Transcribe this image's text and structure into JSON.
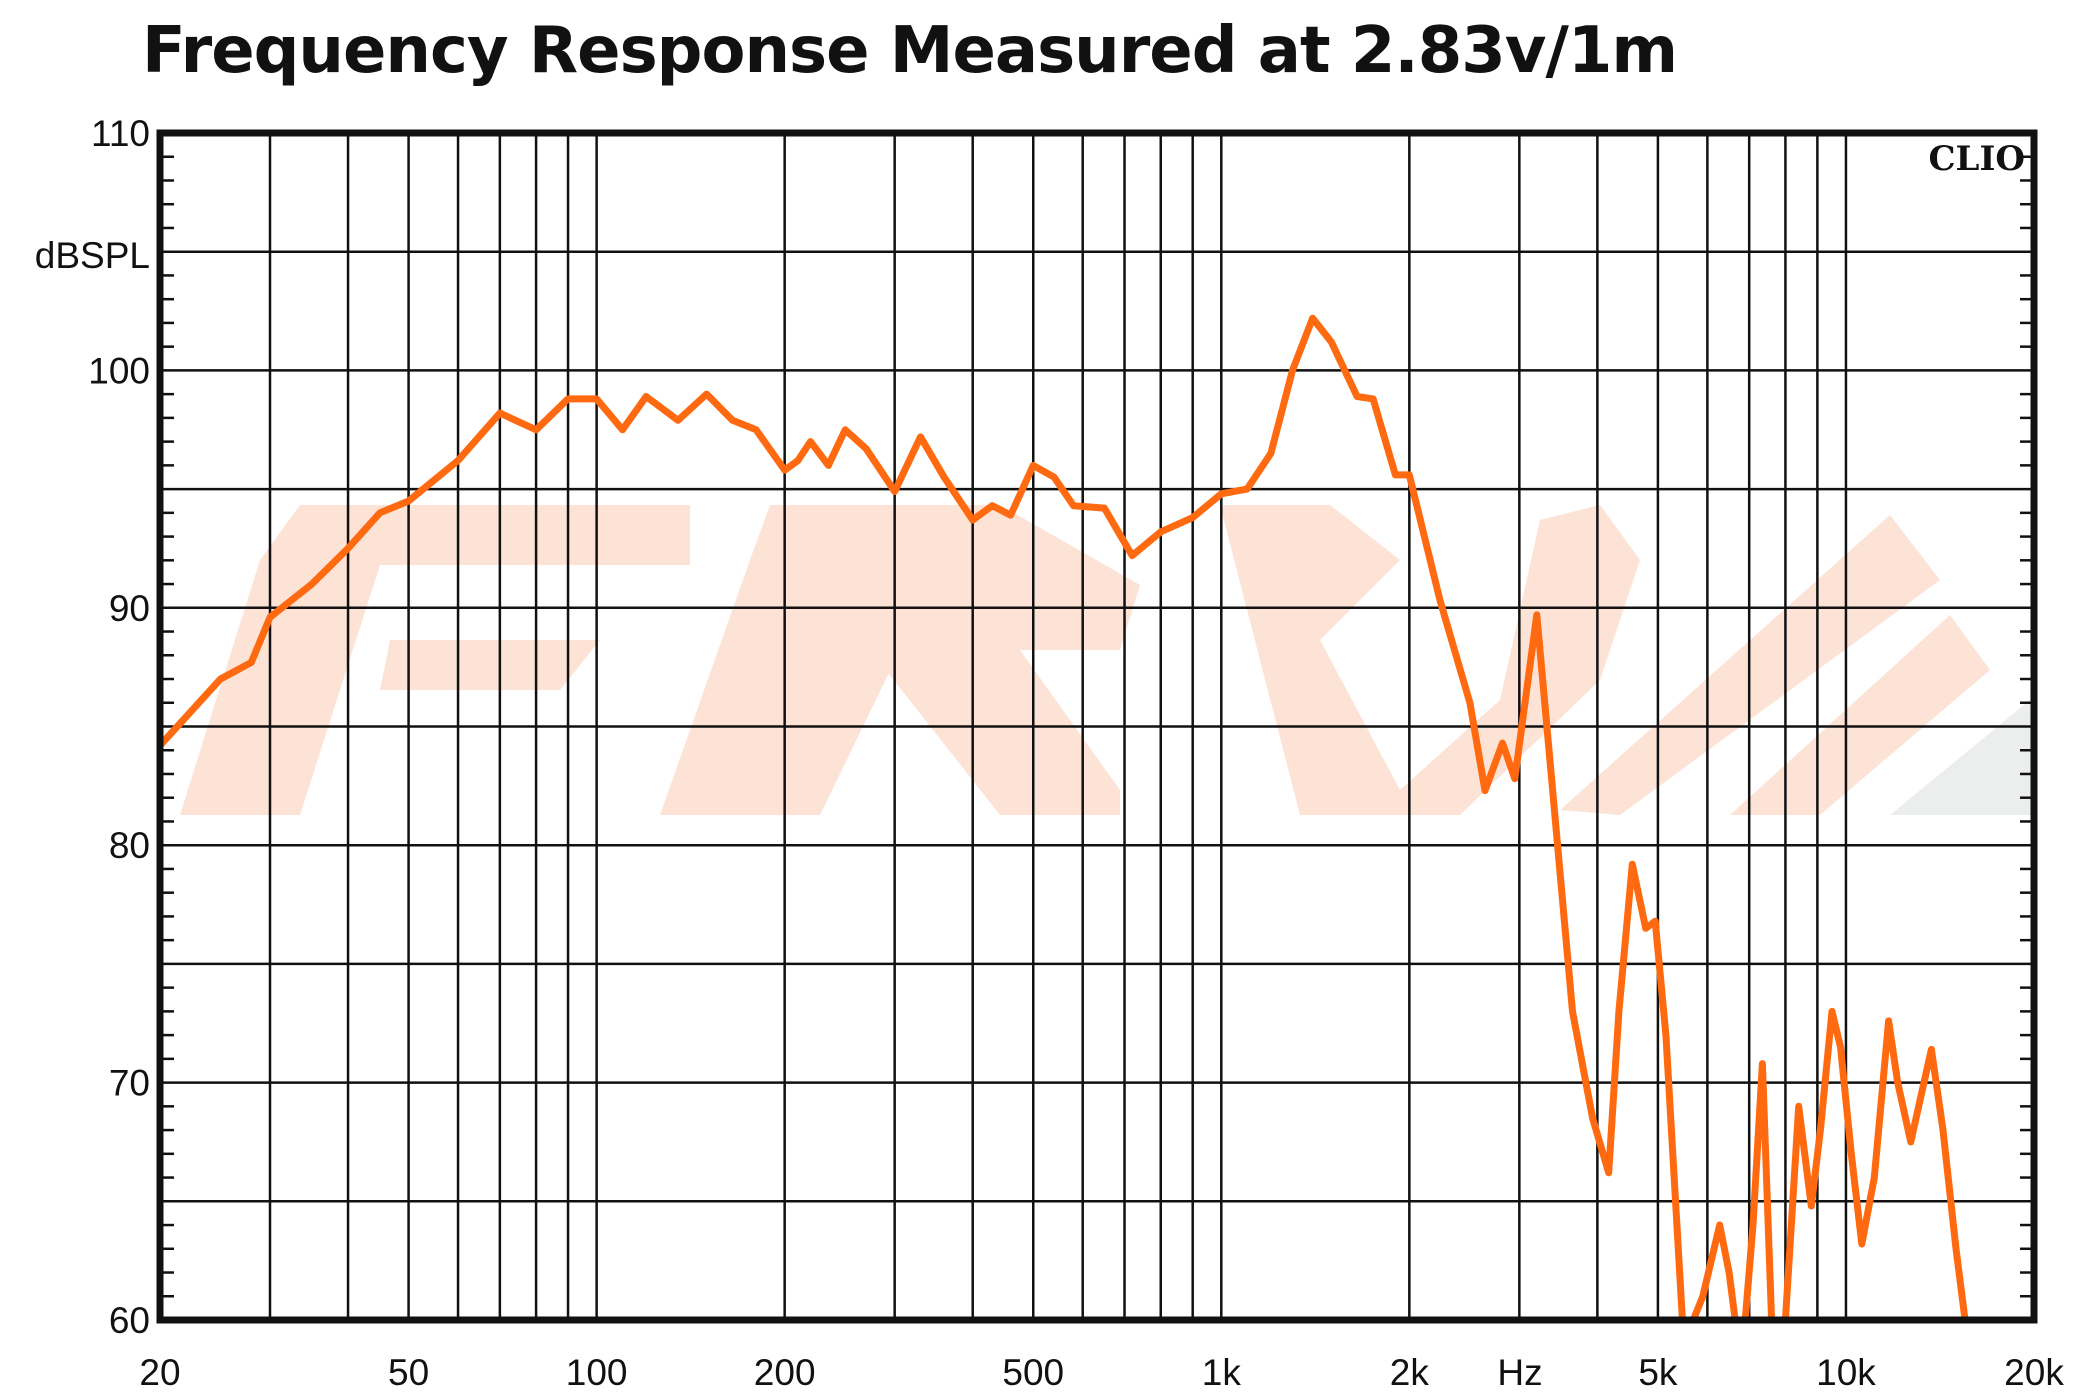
{
  "chart_data": {
    "type": "line",
    "title": "Frequency Response Measured at 2.83v/1m",
    "ylabel": "dBSPL",
    "xlabel": "Hz",
    "watermark": "CLIO",
    "xscale": "log",
    "xlim": [
      20,
      20000
    ],
    "ylim": [
      60,
      110
    ],
    "grid": true,
    "y_ticks": [
      60,
      70,
      80,
      90,
      100,
      110
    ],
    "y_gridlines": [
      60,
      65,
      70,
      75,
      80,
      85,
      90,
      95,
      100,
      105,
      110
    ],
    "x_ticks": [
      {
        "v": 20,
        "label": "20"
      },
      {
        "v": 50,
        "label": "50"
      },
      {
        "v": 100,
        "label": "100"
      },
      {
        "v": 200,
        "label": "200"
      },
      {
        "v": 500,
        "label": "500"
      },
      {
        "v": 1000,
        "label": "1k"
      },
      {
        "v": 2000,
        "label": "2k"
      },
      {
        "v": 5000,
        "label": "5k"
      },
      {
        "v": 10000,
        "label": "10k"
      },
      {
        "v": 20000,
        "label": "20k"
      }
    ],
    "x_gridlines": [
      20,
      30,
      40,
      50,
      60,
      70,
      80,
      90,
      100,
      200,
      300,
      400,
      500,
      600,
      700,
      800,
      900,
      1000,
      2000,
      3000,
      4000,
      5000,
      6000,
      7000,
      8000,
      9000,
      10000,
      20000
    ],
    "line_color": "#ff6a10",
    "series": [
      {
        "name": "Frequency Response",
        "x": [
          20,
          25,
          28,
          30,
          35,
          40,
          45,
          50,
          60,
          70,
          80,
          90,
          100,
          110,
          120,
          135,
          150,
          165,
          180,
          200,
          210,
          220,
          235,
          250,
          270,
          300,
          330,
          360,
          400,
          430,
          460,
          500,
          540,
          580,
          650,
          720,
          800,
          900,
          1000,
          1100,
          1200,
          1300,
          1400,
          1500,
          1650,
          1750,
          1900,
          2000,
          2240,
          2500,
          2643,
          2820,
          2950,
          3200,
          3400,
          3650,
          3930,
          4170,
          4330,
          4550,
          4780,
          4950,
          5150,
          5500,
          5900,
          6280,
          6500,
          6800,
          7100,
          7350,
          7650,
          8000,
          8400,
          8800,
          9100,
          9500,
          9800,
          10200,
          10600,
          11100,
          11700,
          12100,
          12700,
          13200,
          13700,
          14300,
          15000,
          15600
        ],
        "y": [
          84.2,
          87,
          87.7,
          89.6,
          91,
          92.5,
          94,
          94.5,
          96.2,
          98.2,
          97.5,
          98.8,
          98.8,
          97.5,
          98.9,
          97.9,
          99,
          97.9,
          97.5,
          95.8,
          96.2,
          97,
          96,
          97.5,
          96.7,
          94.9,
          97.2,
          95.5,
          93.7,
          94.3,
          93.9,
          96,
          95.5,
          94.3,
          94.2,
          92.2,
          93.2,
          93.8,
          94.8,
          95,
          96.5,
          100,
          102.2,
          101.2,
          98.9,
          98.8,
          95.6,
          95.6,
          90.3,
          86,
          82.3,
          84.3,
          82.8,
          89.7,
          82,
          73,
          68.5,
          66.2,
          73,
          79.2,
          76.5,
          76.8,
          72,
          59,
          61,
          64,
          62,
          58,
          64,
          70.8,
          58,
          60,
          69,
          64.8,
          68,
          73,
          71.5,
          67,
          63.2,
          66,
          72.6,
          70,
          67.5,
          69.5,
          71.4,
          68,
          63,
          59.5
        ]
      }
    ]
  }
}
